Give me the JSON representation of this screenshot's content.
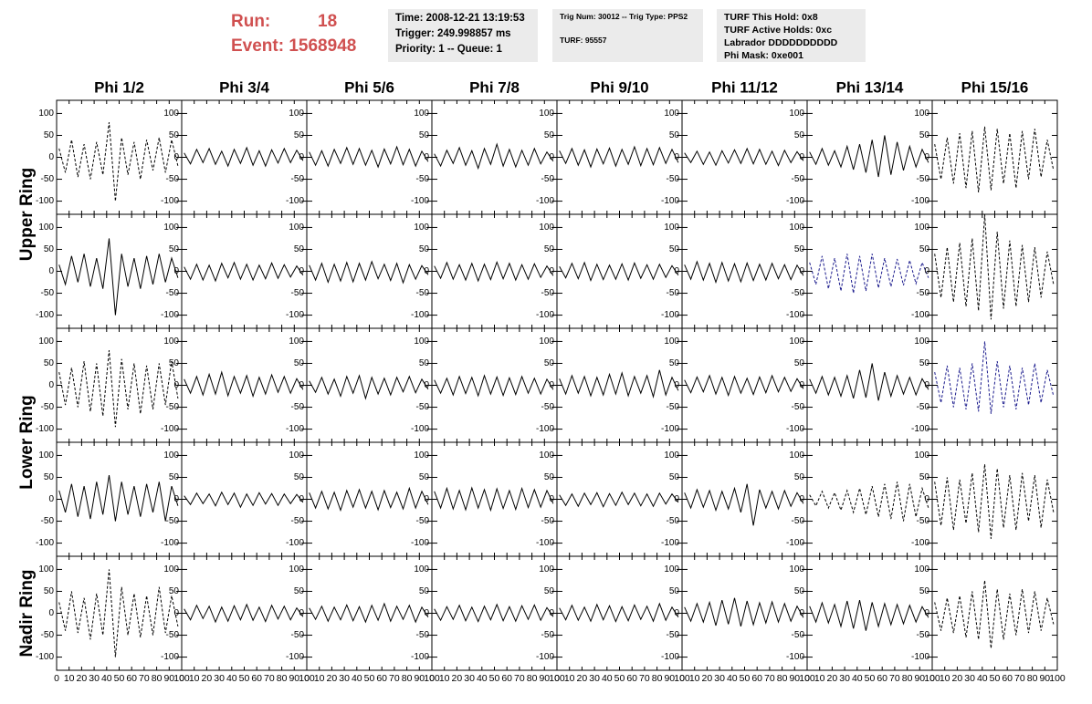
{
  "header": {
    "run_label": "Run:",
    "run": "18",
    "event_label": "Event:",
    "event": "1568948",
    "time_box": [
      "Time: 2008-12-21 13:19:53",
      "Trigger: 249.998857 ms",
      "Priority: 1 -- Queue: 1"
    ],
    "trig_box": [
      "Trig Num: 30012 -- Trig Type: PPS2",
      "TURF: 95557"
    ],
    "turf_box": [
      "TURF This Hold: 0x8",
      "TURF Active Holds: 0xc",
      "Labrador DDDDDDDDDD",
      "Phi Mask: 0xe001"
    ]
  },
  "chart_data": {
    "type": "line",
    "column_titles": [
      "Phi 1/2",
      "Phi 3/4",
      "Phi 5/6",
      "Phi 7/8",
      "Phi 9/10",
      "Phi 11/12",
      "Phi 13/14",
      "Phi 15/16"
    ],
    "row_titles": [
      "Upper Ring",
      "Lower Ring",
      "Nadir Ring"
    ],
    "xlim": [
      0,
      100
    ],
    "xticks": [
      0,
      10,
      20,
      30,
      40,
      50,
      60,
      70,
      80,
      90,
      100
    ],
    "ylim": [
      -130,
      130
    ],
    "yticks": [
      -100,
      -50,
      0,
      50,
      100
    ],
    "x": [
      2,
      7,
      12,
      17,
      22,
      27,
      32,
      37,
      42,
      47,
      52,
      57,
      62,
      67,
      72,
      77,
      82,
      87,
      92,
      97
    ],
    "panels": [
      [
        {
          "color": "#000000",
          "dashed": true,
          "values": [
            20,
            -35,
            40,
            -45,
            30,
            -50,
            35,
            -40,
            80,
            -100,
            45,
            -40,
            35,
            -50,
            40,
            -30,
            45,
            -35,
            40,
            -20
          ]
        },
        {
          "color": "#000000",
          "dashed": false,
          "values": [
            10,
            -15,
            18,
            -12,
            20,
            -16,
            14,
            -20,
            18,
            -14,
            22,
            -18,
            15,
            -20,
            17,
            -13,
            20,
            -12,
            16,
            -8
          ]
        },
        {
          "color": "#000000",
          "dashed": false,
          "values": [
            12,
            -18,
            15,
            -20,
            18,
            -14,
            22,
            -16,
            20,
            -18,
            16,
            -22,
            19,
            -15,
            24,
            -17,
            18,
            -20,
            14,
            -10
          ]
        },
        {
          "color": "#000000",
          "dashed": false,
          "values": [
            8,
            -20,
            16,
            -14,
            22,
            -18,
            15,
            -25,
            20,
            -16,
            30,
            -20,
            18,
            -22,
            16,
            -18,
            20,
            -15,
            12,
            -9
          ]
        },
        {
          "color": "#000000",
          "dashed": false,
          "values": [
            15,
            -14,
            20,
            -18,
            17,
            -22,
            19,
            -15,
            21,
            -20,
            18,
            -16,
            24,
            -19,
            20,
            -17,
            22,
            -14,
            18,
            -12
          ]
        },
        {
          "color": "#000000",
          "dashed": false,
          "values": [
            10,
            -12,
            14,
            -16,
            12,
            -18,
            15,
            -13,
            17,
            -14,
            20,
            -15,
            18,
            -16,
            14,
            -19,
            16,
            -12,
            13,
            -8
          ]
        },
        {
          "color": "#000000",
          "dashed": false,
          "values": [
            12,
            -16,
            20,
            -18,
            15,
            -22,
            25,
            -28,
            30,
            -35,
            40,
            -45,
            50,
            -40,
            35,
            -30,
            25,
            -22,
            18,
            -12
          ]
        },
        {
          "color": "#000000",
          "dashed": true,
          "values": [
            30,
            -50,
            45,
            -60,
            55,
            -70,
            60,
            -80,
            70,
            -75,
            65,
            -60,
            55,
            -70,
            60,
            -50,
            65,
            -45,
            40,
            -30
          ]
        }
      ],
      [
        {
          "color": "#000000",
          "dashed": false,
          "values": [
            15,
            -30,
            35,
            -25,
            40,
            -35,
            30,
            -40,
            75,
            -100,
            40,
            -35,
            30,
            -40,
            35,
            -30,
            40,
            -25,
            30,
            -15
          ]
        },
        {
          "color": "#000000",
          "dashed": false,
          "values": [
            10,
            -18,
            16,
            -20,
            14,
            -22,
            18,
            -15,
            20,
            -18,
            16,
            -20,
            14,
            -17,
            19,
            -16,
            15,
            -13,
            12,
            -9
          ]
        },
        {
          "color": "#000000",
          "dashed": false,
          "values": [
            14,
            -20,
            18,
            -25,
            16,
            -22,
            20,
            -24,
            18,
            -20,
            22,
            -17,
            16,
            -21,
            18,
            -26,
            15,
            -18,
            13,
            -8
          ]
        },
        {
          "color": "#000000",
          "dashed": false,
          "values": [
            12,
            -16,
            20,
            -18,
            15,
            -20,
            18,
            -22,
            16,
            -19,
            21,
            -17,
            18,
            -20,
            15,
            -18,
            17,
            -14,
            12,
            -10
          ]
        },
        {
          "color": "#000000",
          "dashed": false,
          "values": [
            11,
            -15,
            18,
            -17,
            20,
            -21,
            16,
            -19,
            14,
            -18,
            17,
            -20,
            19,
            -16,
            15,
            -18,
            16,
            -14,
            13,
            -9
          ]
        },
        {
          "color": "#000000",
          "dashed": false,
          "values": [
            15,
            -18,
            22,
            -20,
            18,
            -25,
            20,
            -22,
            17,
            -24,
            19,
            -21,
            16,
            -20,
            18,
            -17,
            15,
            -19,
            14,
            -10
          ]
        },
        {
          "color": "#1a1a8c",
          "dashed": true,
          "values": [
            20,
            -30,
            35,
            -40,
            30,
            -45,
            40,
            -50,
            35,
            -45,
            40,
            -38,
            30,
            -35,
            28,
            -32,
            25,
            -28,
            20,
            -15
          ]
        },
        {
          "color": "#000000",
          "dashed": true,
          "values": [
            40,
            -60,
            55,
            -70,
            65,
            -80,
            75,
            -90,
            130,
            -110,
            90,
            -85,
            70,
            -80,
            60,
            -70,
            55,
            -60,
            45,
            -30
          ]
        }
      ],
      [
        {
          "color": "#000000",
          "dashed": true,
          "values": [
            30,
            -45,
            40,
            -50,
            55,
            -60,
            50,
            -70,
            80,
            -95,
            60,
            -55,
            50,
            -65,
            45,
            -55,
            50,
            -45,
            55,
            -30
          ]
        },
        {
          "color": "#000000",
          "dashed": false,
          "values": [
            14,
            -18,
            20,
            -22,
            25,
            -20,
            30,
            -24,
            20,
            -18,
            22,
            -25,
            18,
            -20,
            24,
            -16,
            20,
            -18,
            15,
            -10
          ]
        },
        {
          "color": "#000000",
          "dashed": false,
          "values": [
            10,
            -16,
            18,
            -20,
            14,
            -25,
            20,
            -18,
            22,
            -30,
            18,
            -20,
            16,
            -22,
            18,
            -15,
            20,
            -17,
            14,
            -9
          ]
        },
        {
          "color": "#000000",
          "dashed": false,
          "values": [
            12,
            -18,
            16,
            -22,
            20,
            -19,
            18,
            -24,
            22,
            -20,
            19,
            -23,
            17,
            -21,
            20,
            -18,
            16,
            -20,
            14,
            -10
          ]
        },
        {
          "color": "#000000",
          "dashed": false,
          "values": [
            15,
            -20,
            22,
            -18,
            20,
            -24,
            18,
            -22,
            25,
            -20,
            28,
            -24,
            20,
            -18,
            22,
            -26,
            35,
            -22,
            18,
            -12
          ]
        },
        {
          "color": "#000000",
          "dashed": false,
          "values": [
            12,
            -17,
            19,
            -15,
            22,
            -20,
            18,
            -23,
            20,
            -18,
            16,
            -21,
            19,
            -17,
            22,
            -15,
            18,
            -14,
            15,
            -8
          ]
        },
        {
          "color": "#000000",
          "dashed": false,
          "values": [
            14,
            -18,
            20,
            -22,
            18,
            -25,
            22,
            -30,
            35,
            -28,
            50,
            -35,
            30,
            -25,
            22,
            -20,
            18,
            -22,
            15,
            -10
          ]
        },
        {
          "color": "#1a1a8c",
          "dashed": true,
          "values": [
            30,
            -40,
            45,
            -50,
            40,
            -55,
            50,
            -60,
            100,
            -65,
            55,
            -50,
            45,
            -55,
            40,
            -45,
            50,
            -40,
            35,
            -25
          ]
        }
      ],
      [
        {
          "color": "#000000",
          "dashed": false,
          "values": [
            20,
            -30,
            35,
            -40,
            30,
            -45,
            40,
            -35,
            55,
            -50,
            40,
            -35,
            30,
            -40,
            35,
            -30,
            40,
            -50,
            30,
            -15
          ]
        },
        {
          "color": "#000000",
          "dashed": false,
          "values": [
            8,
            -12,
            14,
            -10,
            12,
            -15,
            16,
            -12,
            14,
            -18,
            12,
            -14,
            15,
            -11,
            13,
            -14,
            12,
            -10,
            11,
            -7
          ]
        },
        {
          "color": "#000000",
          "dashed": false,
          "values": [
            15,
            -20,
            18,
            -22,
            16,
            -25,
            20,
            -18,
            22,
            -20,
            18,
            -24,
            20,
            -19,
            16,
            -22,
            25,
            -20,
            18,
            -12
          ]
        },
        {
          "color": "#000000",
          "dashed": false,
          "values": [
            18,
            -20,
            25,
            -22,
            20,
            -24,
            26,
            -20,
            22,
            -25,
            24,
            -21,
            20,
            -23,
            25,
            -19,
            22,
            -18,
            20,
            -10
          ]
        },
        {
          "color": "#000000",
          "dashed": false,
          "values": [
            10,
            -14,
            12,
            -16,
            14,
            -12,
            15,
            -17,
            13,
            -14,
            16,
            -12,
            14,
            -15,
            12,
            -16,
            14,
            -11,
            12,
            -7
          ]
        },
        {
          "color": "#000000",
          "dashed": false,
          "values": [
            15,
            -20,
            22,
            -18,
            20,
            -25,
            18,
            -22,
            25,
            -30,
            35,
            -60,
            22,
            -20,
            18,
            -22,
            20,
            -16,
            15,
            -10
          ]
        },
        {
          "color": "#000000",
          "dashed": true,
          "values": [
            10,
            -15,
            18,
            -20,
            15,
            -25,
            20,
            -30,
            25,
            -35,
            30,
            -40,
            35,
            -45,
            40,
            -50,
            35,
            -40,
            25,
            -20
          ]
        },
        {
          "color": "#000000",
          "dashed": true,
          "values": [
            40,
            -60,
            50,
            -70,
            45,
            -55,
            60,
            -75,
            80,
            -90,
            70,
            -65,
            55,
            -70,
            60,
            -50,
            55,
            -65,
            45,
            -30
          ]
        }
      ],
      [
        {
          "color": "#000000",
          "dashed": true,
          "values": [
            25,
            -40,
            50,
            -45,
            35,
            -60,
            45,
            -50,
            100,
            -100,
            60,
            -50,
            45,
            -55,
            40,
            -50,
            60,
            -45,
            40,
            -30
          ]
        },
        {
          "color": "#000000",
          "dashed": false,
          "values": [
            10,
            -15,
            18,
            -12,
            16,
            -20,
            14,
            -18,
            17,
            -15,
            20,
            -16,
            14,
            -19,
            18,
            -13,
            16,
            -15,
            12,
            -8
          ]
        },
        {
          "color": "#000000",
          "dashed": false,
          "values": [
            12,
            -14,
            16,
            -18,
            14,
            -15,
            19,
            -17,
            15,
            -20,
            18,
            -16,
            22,
            -18,
            16,
            -14,
            18,
            -20,
            14,
            -9
          ]
        },
        {
          "color": "#000000",
          "dashed": false,
          "values": [
            10,
            -16,
            15,
            -14,
            18,
            -17,
            14,
            -19,
            16,
            -15,
            20,
            -17,
            15,
            -18,
            17,
            -14,
            19,
            -16,
            13,
            -8
          ]
        },
        {
          "color": "#000000",
          "dashed": false,
          "values": [
            12,
            -15,
            18,
            -16,
            14,
            -18,
            20,
            -15,
            17,
            -19,
            15,
            -17,
            19,
            -14,
            16,
            -18,
            22,
            -16,
            14,
            -9
          ]
        },
        {
          "color": "#000000",
          "dashed": false,
          "values": [
            14,
            -18,
            22,
            -20,
            25,
            -28,
            30,
            -25,
            35,
            -30,
            28,
            -26,
            24,
            -22,
            26,
            -20,
            22,
            -18,
            16,
            -10
          ]
        },
        {
          "color": "#000000",
          "dashed": false,
          "values": [
            16,
            -20,
            24,
            -22,
            20,
            -30,
            28,
            -35,
            30,
            -40,
            25,
            -30,
            22,
            -26,
            20,
            -24,
            18,
            -20,
            15,
            -10
          ]
        },
        {
          "color": "#000000",
          "dashed": true,
          "values": [
            25,
            -40,
            35,
            -45,
            40,
            -55,
            50,
            -60,
            75,
            -80,
            55,
            -60,
            45,
            -50,
            55,
            -45,
            50,
            -40,
            35,
            -25
          ]
        }
      ]
    ]
  }
}
